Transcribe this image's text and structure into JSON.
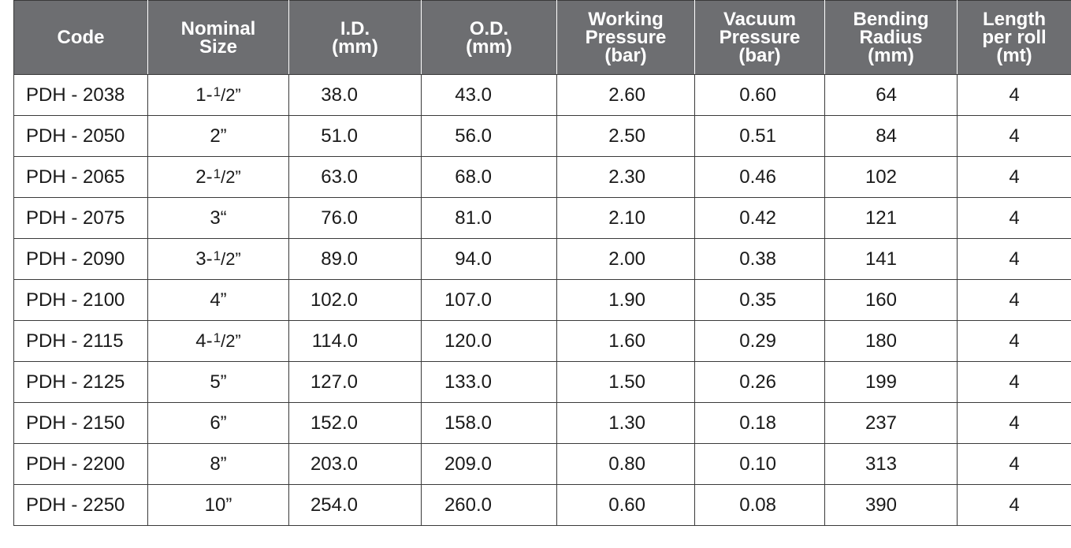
{
  "table": {
    "headers": [
      [
        "Code"
      ],
      [
        "Nominal",
        "Size"
      ],
      [
        "I.D.",
        "(mm)"
      ],
      [
        "O.D.",
        "(mm)"
      ],
      [
        "Working",
        "Pressure",
        "(bar)"
      ],
      [
        "Vacuum",
        "Pressure",
        "(bar)"
      ],
      [
        "Bending",
        "Radius",
        "(mm)"
      ],
      [
        "Length",
        "per roll",
        "(mt)"
      ]
    ],
    "rows": [
      {
        "code": "PDH - 2038",
        "size_whole": "1-",
        "size_num": "1",
        "size_den": "2”",
        "id": "38.0",
        "od": "43.0",
        "wp": "2.60",
        "vp": "0.60",
        "br": "64",
        "len": "4"
      },
      {
        "code": "PDH - 2050",
        "size_whole": "2”",
        "size_num": "",
        "size_den": "",
        "id": "51.0",
        "od": "56.0",
        "wp": "2.50",
        "vp": "0.51",
        "br": "84",
        "len": "4"
      },
      {
        "code": "PDH - 2065",
        "size_whole": "2-",
        "size_num": "1",
        "size_den": "2”",
        "id": "63.0",
        "od": "68.0",
        "wp": "2.30",
        "vp": "0.46",
        "br": "102",
        "len": "4"
      },
      {
        "code": "PDH - 2075",
        "size_whole": "3“",
        "size_num": "",
        "size_den": "",
        "id": "76.0",
        "od": "81.0",
        "wp": "2.10",
        "vp": "0.42",
        "br": "121",
        "len": "4"
      },
      {
        "code": "PDH - 2090",
        "size_whole": "3-",
        "size_num": "1",
        "size_den": "2”",
        "id": "89.0",
        "od": "94.0",
        "wp": "2.00",
        "vp": "0.38",
        "br": "141",
        "len": "4"
      },
      {
        "code": "PDH - 2100",
        "size_whole": "4”",
        "size_num": "",
        "size_den": "",
        "id": "102.0",
        "od": "107.0",
        "wp": "1.90",
        "vp": "0.35",
        "br": "160",
        "len": "4"
      },
      {
        "code": "PDH - 2115",
        "size_whole": "4-",
        "size_num": "1",
        "size_den": "2”",
        "id": "114.0",
        "od": "120.0",
        "wp": "1.60",
        "vp": "0.29",
        "br": "180",
        "len": "4"
      },
      {
        "code": "PDH - 2125",
        "size_whole": "5”",
        "size_num": "",
        "size_den": "",
        "id": "127.0",
        "od": "133.0",
        "wp": "1.50",
        "vp": "0.26",
        "br": "199",
        "len": "4"
      },
      {
        "code": "PDH - 2150",
        "size_whole": "6”",
        "size_num": "",
        "size_den": "",
        "id": "152.0",
        "od": "158.0",
        "wp": "1.30",
        "vp": "0.18",
        "br": "237",
        "len": "4"
      },
      {
        "code": "PDH - 2200",
        "size_whole": "8”",
        "size_num": "",
        "size_den": "",
        "id": "203.0",
        "od": "209.0",
        "wp": "0.80",
        "vp": "0.10",
        "br": "313",
        "len": "4"
      },
      {
        "code": "PDH - 2250",
        "size_whole": "10”",
        "size_num": "",
        "size_den": "",
        "id": "254.0",
        "od": "260.0",
        "wp": "0.60",
        "vp": "0.08",
        "br": "390",
        "len": "4"
      }
    ]
  },
  "colors": {
    "header_bg": "#6d6e71",
    "header_text": "#ffffff",
    "border": "#3a3a3a"
  }
}
